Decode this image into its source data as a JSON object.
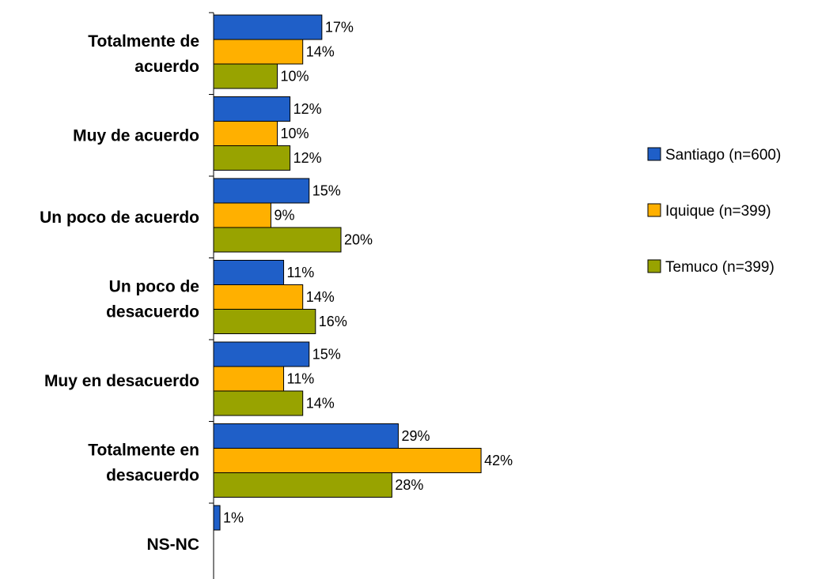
{
  "chart_data": {
    "type": "bar",
    "orientation": "horizontal",
    "categories": [
      [
        "Totalmente de",
        "acuerdo"
      ],
      [
        "Muy de acuerdo"
      ],
      [
        "Un poco de acuerdo"
      ],
      [
        "Un poco de",
        "desacuerdo"
      ],
      [
        "Muy en desacuerdo"
      ],
      [
        "Totalmente en",
        "desacuerdo"
      ],
      [
        "NS-NC"
      ]
    ],
    "series": [
      {
        "name": "Santiago (n=600)",
        "color": "#1F5FC8",
        "values": [
          17,
          12,
          15,
          11,
          15,
          29,
          1
        ]
      },
      {
        "name": "Iquique (n=399)",
        "color": "#FFB000",
        "values": [
          14,
          10,
          9,
          14,
          11,
          42,
          null
        ]
      },
      {
        "name": "Temuco (n=399)",
        "color": "#98A300",
        "values": [
          10,
          12,
          20,
          16,
          14,
          28,
          null
        ]
      }
    ],
    "value_suffix": "%",
    "xlim": [
      0,
      50
    ],
    "grid": false,
    "legend_position": "right"
  }
}
